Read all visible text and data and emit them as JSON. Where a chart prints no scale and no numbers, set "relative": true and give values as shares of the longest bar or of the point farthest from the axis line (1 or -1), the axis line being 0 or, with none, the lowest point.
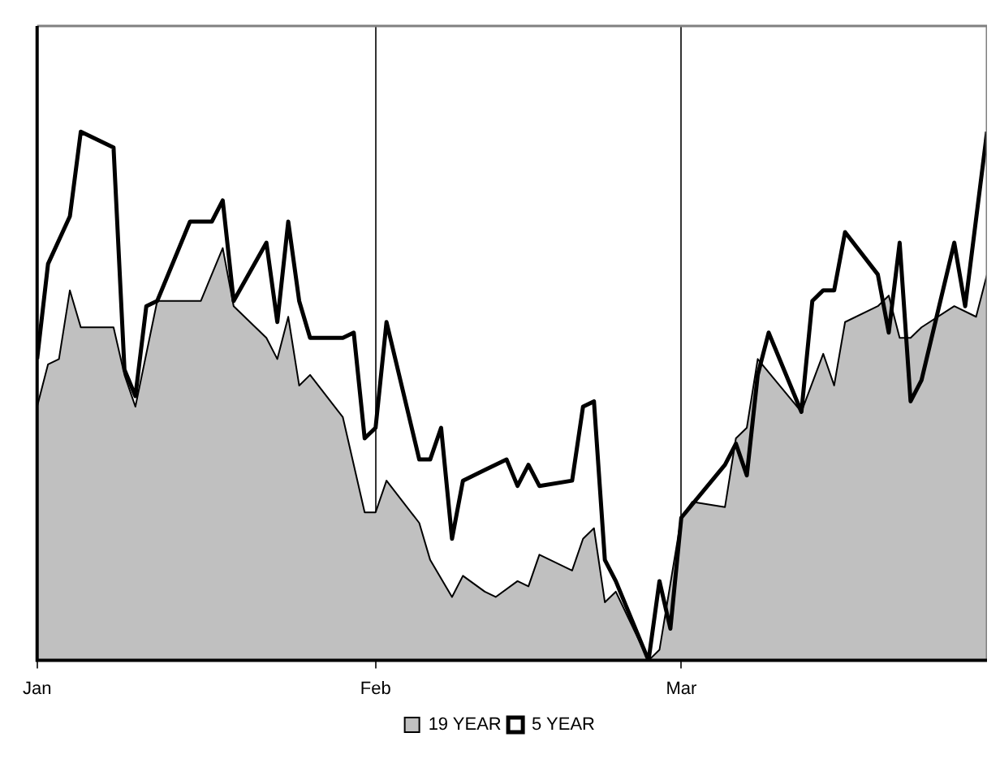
{
  "chart_data": {
    "type": "area",
    "relative": true,
    "xlim": [
      "--01-01",
      "--03-29"
    ],
    "xticks": [
      {
        "value": "--01-01",
        "label": "Jan"
      },
      {
        "value": "--02-01",
        "label": "Feb"
      },
      {
        "value": "--03-01",
        "label": "Mar"
      }
    ],
    "grid": "x",
    "legend": "bottom",
    "marker": "none",
    "series": [
      {
        "name": "19 YEAR",
        "type": "area",
        "color": "#c0c0c0",
        "x": [
          "--01-01",
          "--01-02",
          "--01-03",
          "--01-04",
          "--01-05",
          "--01-08",
          "--01-09",
          "--01-10",
          "--01-12",
          "--01-16",
          "--01-18",
          "--01-19",
          "--01-22",
          "--01-23",
          "--01-24",
          "--01-25",
          "--01-26",
          "--01-29",
          "--01-31",
          "--02-01",
          "--02-02",
          "--02-05",
          "--02-06",
          "--02-08",
          "--02-09",
          "--02-11",
          "--02-12",
          "--02-14",
          "--02-15",
          "--02-16",
          "--02-19",
          "--02-20",
          "--02-21",
          "--02-22",
          "--02-23",
          "--02-26",
          "--02-27",
          "--03-01",
          "--03-02",
          "--03-05",
          "--03-06",
          "--03-07",
          "--03-08",
          "--03-12",
          "--03-14",
          "--03-15",
          "--03-16",
          "--03-19",
          "--03-20",
          "--03-21",
          "--03-22",
          "--03-23",
          "--03-26",
          "--03-28",
          "--03-29"
        ],
        "values": [
          0.48,
          0.56,
          0.57,
          0.7,
          0.63,
          0.63,
          0.54,
          0.48,
          0.68,
          0.68,
          0.78,
          0.67,
          0.61,
          0.57,
          0.65,
          0.52,
          0.54,
          0.46,
          0.28,
          0.28,
          0.34,
          0.26,
          0.19,
          0.12,
          0.16,
          0.13,
          0.12,
          0.15,
          0.14,
          0.2,
          0.17,
          0.23,
          0.25,
          0.11,
          0.13,
          0.0,
          0.02,
          0.27,
          0.3,
          0.29,
          0.42,
          0.44,
          0.57,
          0.47,
          0.58,
          0.52,
          0.64,
          0.67,
          0.69,
          0.61,
          0.61,
          0.63,
          0.67,
          0.65,
          0.73
        ]
      },
      {
        "name": "5 YEAR",
        "type": "line",
        "color": "#000000",
        "x": [
          "--01-01",
          "--01-02",
          "--01-04",
          "--01-05",
          "--01-08",
          "--01-09",
          "--01-10",
          "--01-11",
          "--01-12",
          "--01-15",
          "--01-17",
          "--01-18",
          "--01-19",
          "--01-22",
          "--01-23",
          "--01-24",
          "--01-25",
          "--01-26",
          "--01-29",
          "--01-30",
          "--01-31",
          "--02-01",
          "--02-02",
          "--02-05",
          "--02-06",
          "--02-07",
          "--02-08",
          "--02-09",
          "--02-11",
          "--02-13",
          "--02-14",
          "--02-15",
          "--02-16",
          "--02-19",
          "--02-20",
          "--02-21",
          "--02-22",
          "--02-23",
          "--02-26",
          "--02-27",
          "--02-28",
          "--03-01",
          "--03-05",
          "--03-06",
          "--03-07",
          "--03-08",
          "--03-09",
          "--03-12",
          "--03-13",
          "--03-14",
          "--03-15",
          "--03-16",
          "--03-19",
          "--03-20",
          "--03-21",
          "--03-22",
          "--03-23",
          "--03-26",
          "--03-27",
          "--03-29"
        ],
        "values": [
          0.57,
          0.75,
          0.84,
          1.0,
          0.97,
          0.55,
          0.5,
          0.67,
          0.68,
          0.83,
          0.83,
          0.87,
          0.68,
          0.79,
          0.64,
          0.83,
          0.68,
          0.61,
          0.61,
          0.62,
          0.42,
          0.44,
          0.64,
          0.38,
          0.38,
          0.44,
          0.23,
          0.34,
          0.36,
          0.38,
          0.33,
          0.37,
          0.33,
          0.34,
          0.48,
          0.49,
          0.19,
          0.15,
          0.0,
          0.15,
          0.06,
          0.27,
          0.37,
          0.41,
          0.35,
          0.54,
          0.62,
          0.47,
          0.68,
          0.7,
          0.7,
          0.81,
          0.73,
          0.62,
          0.79,
          0.49,
          0.53,
          0.79,
          0.67,
          1.0
        ]
      }
    ]
  }
}
